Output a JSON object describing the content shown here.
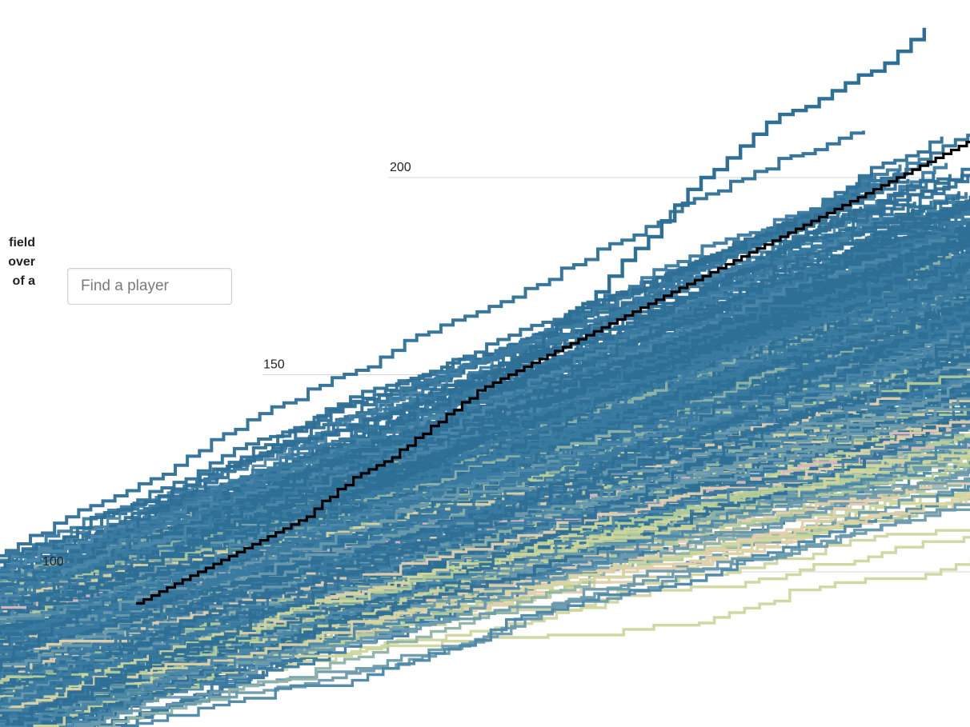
{
  "search": {
    "placeholder": "Find a player"
  },
  "intro_fragments": [
    "field",
    "over",
    "of a"
  ],
  "colors": {
    "highlight": "#2e6f96",
    "reference": "#000000",
    "palette": [
      "#2e6f96",
      "#3a7aa0",
      "#4b87a8",
      "#6a9aac",
      "#8fb3a6",
      "#b3cc9a",
      "#cfd69e",
      "#dcd3a6",
      "#e3cfb0",
      "#d9b7c0"
    ]
  },
  "chart_data": {
    "type": "line",
    "xlabel": "",
    "ylabel": "",
    "y_gridlines": [
      100,
      150,
      200
    ],
    "series": [
      {
        "role": "highlight",
        "values": [
          92,
          93,
          94,
          95,
          96,
          97,
          99,
          101,
          102,
          104,
          106,
          108,
          110,
          112,
          114,
          116,
          118,
          120,
          122,
          124,
          126,
          127,
          128,
          129,
          131,
          133,
          133,
          133,
          133,
          135,
          137,
          141,
          143,
          145,
          147,
          150,
          154,
          157,
          160,
          163,
          166,
          168,
          171,
          175,
          179,
          182,
          185,
          189,
          193,
          197,
          200,
          202,
          205,
          208,
          211,
          214,
          216,
          217,
          218,
          220,
          222,
          224,
          226,
          227,
          229,
          232,
          235,
          238
        ]
      },
      {
        "role": "reference",
        "values": [
          92,
          93,
          94,
          95,
          96,
          97,
          98,
          99,
          100,
          101,
          102,
          103,
          104,
          105,
          106,
          107,
          108,
          109,
          110,
          111,
          112,
          113,
          114,
          116,
          118,
          119,
          121,
          122,
          124,
          125,
          126,
          127,
          128,
          129,
          131,
          132,
          134,
          135,
          137,
          138,
          140,
          141,
          143,
          144,
          146,
          147,
          148,
          149,
          150,
          151,
          152,
          153,
          154,
          155,
          156,
          157,
          158,
          159,
          160,
          161,
          162,
          163,
          164,
          165,
          166,
          167,
          168,
          169,
          170,
          171,
          172,
          173,
          174,
          175,
          176,
          177,
          178,
          179,
          180,
          181,
          182,
          183,
          184,
          185,
          186,
          187,
          188,
          189,
          190,
          191,
          192,
          193,
          194,
          195,
          196,
          197,
          198,
          199,
          200,
          201,
          202,
          203,
          204,
          205,
          206,
          207,
          208,
          209,
          210,
          211,
          212
        ]
      }
    ]
  }
}
